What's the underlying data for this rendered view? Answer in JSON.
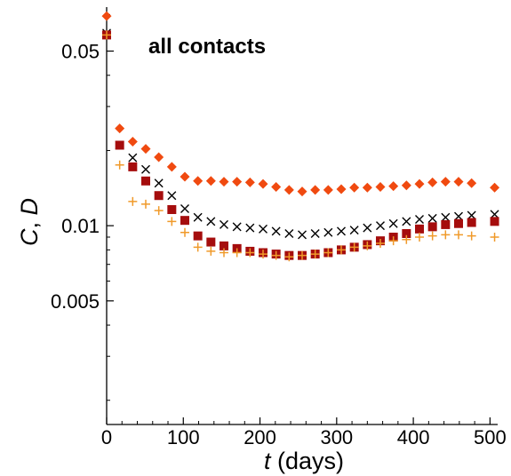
{
  "chart_data": {
    "type": "scatter",
    "title": "",
    "annotation": "all contacts",
    "xlabel": {
      "var": "t",
      "rest": " (days)"
    },
    "ylabel": {
      "a": "C",
      "sep": ", ",
      "b": "D"
    },
    "xlim": [
      0,
      510
    ],
    "ylim": [
      0.0016,
      0.075
    ],
    "yscale": "log",
    "grid": false,
    "x_ticks": [
      {
        "value": 0,
        "label": "0"
      },
      {
        "value": 100,
        "label": "100"
      },
      {
        "value": 200,
        "label": "200"
      },
      {
        "value": 300,
        "label": "300"
      },
      {
        "value": 400,
        "label": "400"
      },
      {
        "value": 500,
        "label": "500"
      }
    ],
    "y_ticks": [
      {
        "value": 0.005,
        "label": "0.005"
      },
      {
        "value": 0.01,
        "label": "0.01"
      },
      {
        "value": 0.05,
        "label": "0.05"
      }
    ],
    "x": [
      0,
      17,
      34,
      51,
      68,
      85,
      102,
      119,
      136,
      153,
      170,
      187,
      204,
      221,
      238,
      255,
      272,
      289,
      306,
      323,
      340,
      357,
      374,
      391,
      408,
      425,
      442,
      459,
      476,
      506
    ],
    "series": [
      {
        "marker": "diamond",
        "color": "#f04a10",
        "values": [
          0.069,
          0.0245,
          0.0217,
          0.0203,
          0.0188,
          0.0172,
          0.0157,
          0.0151,
          0.0151,
          0.015,
          0.015,
          0.0149,
          0.0147,
          0.0143,
          0.0139,
          0.0137,
          0.0139,
          0.0139,
          0.014,
          0.0142,
          0.0142,
          0.0143,
          0.0144,
          0.0145,
          0.0147,
          0.0149,
          0.015,
          0.015,
          0.0148,
          0.0142
        ]
      },
      {
        "marker": "cross",
        "color": "#000000",
        "values": [
          0.059,
          0.021,
          0.0187,
          0.0168,
          0.0148,
          0.0132,
          0.0117,
          0.0108,
          0.0104,
          0.0101,
          0.0099,
          0.0098,
          0.0097,
          0.0095,
          0.0093,
          0.0092,
          0.0093,
          0.0094,
          0.0095,
          0.0096,
          0.0098,
          0.01,
          0.0102,
          0.0104,
          0.0106,
          0.0107,
          0.0108,
          0.0109,
          0.011,
          0.0111
        ]
      },
      {
        "marker": "square",
        "color": "#a50d0d",
        "values": [
          0.058,
          0.021,
          0.0172,
          0.0151,
          0.0132,
          0.0116,
          0.0105,
          0.0091,
          0.0086,
          0.0083,
          0.0081,
          0.0079,
          0.0078,
          0.0077,
          0.0076,
          0.0076,
          0.0077,
          0.0078,
          0.008,
          0.0082,
          0.0084,
          0.0087,
          0.009,
          0.0093,
          0.0097,
          0.0099,
          0.0101,
          0.0102,
          0.0103,
          0.0104
        ]
      },
      {
        "marker": "plus",
        "color": "#f09a2a",
        "values": [
          0.058,
          0.0175,
          0.0125,
          0.0122,
          0.0115,
          0.0104,
          0.0094,
          0.0082,
          0.0079,
          0.0078,
          0.0078,
          0.0078,
          0.0077,
          0.0076,
          0.0075,
          0.0076,
          0.0077,
          0.0078,
          0.008,
          0.0082,
          0.0083,
          0.0085,
          0.0087,
          0.0088,
          0.009,
          0.0091,
          0.0092,
          0.0092,
          0.0091,
          0.009
        ]
      }
    ]
  }
}
